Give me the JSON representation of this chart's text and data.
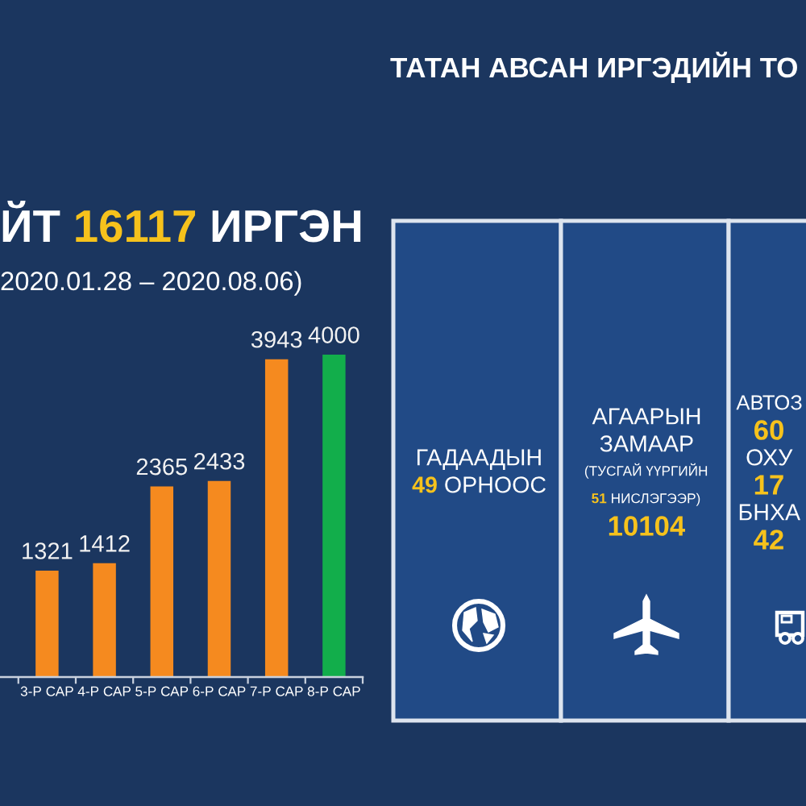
{
  "chart_data": [
    {
      "type": "bar",
      "title": "ЙТ 16117 ИРГЭН",
      "subtitle": "2020.01.28 – 2020.08.06)",
      "categories": [
        "3-Р САР",
        "4-Р САР",
        "5-Р САР",
        "6-Р САР",
        "7-Р САР",
        "8-Р САР"
      ],
      "values": [
        1321,
        1412,
        2365,
        2433,
        3943,
        4000
      ],
      "colors": [
        "#f58a1f",
        "#f58a1f",
        "#f58a1f",
        "#f58a1f",
        "#f58a1f",
        "#12ae4b"
      ],
      "data_labels": true,
      "tick_labels": "x"
    },
    {
      "type": "other",
      "title": "ТАТАН АВСАН ИРГЭДИЙН ТО",
      "annotations": [
        "ГАДААДЫН\n49 ОРНООС",
        "АГААРЫН\nЗАМААР\n(ТУСГАЙ ҮҮРГИЙН\n51 НИСЛЭГЭЭР)\n10104",
        "АВТОЗ\n60\nОХУ\n17\nБНХА\n42"
      ]
    }
  ]
}
